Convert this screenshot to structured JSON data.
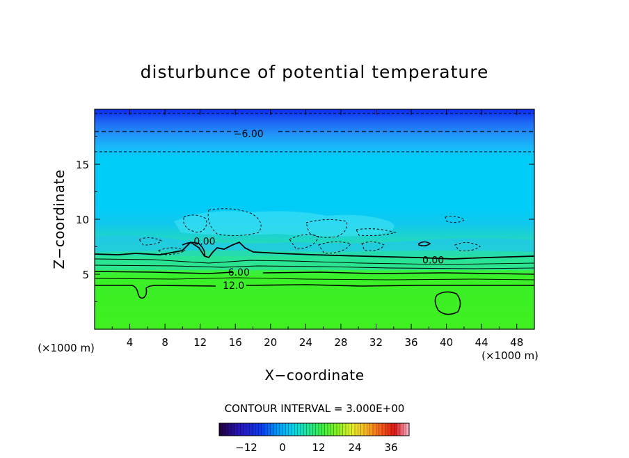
{
  "chart_data": {
    "type": "heatmap",
    "title": "disturbunce of potential temperature",
    "xlabel": "X−coordinate",
    "ylabel": "Z−coordinate",
    "x_unit": "(×1000 m)",
    "y_unit": "(×1000 m)",
    "xlim": [
      0,
      50
    ],
    "ylim": [
      0,
      20
    ],
    "x_ticks": [
      4,
      8,
      12,
      16,
      20,
      24,
      28,
      32,
      36,
      40,
      44,
      48
    ],
    "y_ticks": [
      5,
      10,
      15
    ],
    "contour_interval_text": "CONTOUR INTERVAL = 3.000E+00",
    "contour_labels": [
      {
        "text": "−6.00",
        "x": 17.5,
        "y": 17.8
      },
      {
        "text": "0.00",
        "x": 12.5,
        "y": 8.0
      },
      {
        "text": "0.00",
        "x": 38.5,
        "y": 6.3
      },
      {
        "text": "6.00",
        "x": 16.4,
        "y": 5.2
      },
      {
        "text": "12.0",
        "x": 15.8,
        "y": 4.0
      }
    ],
    "contour_levels": [
      {
        "value": -6,
        "style": "dashed",
        "z": 17.8
      },
      {
        "value": -3,
        "style": "dashed",
        "z": 16.0
      },
      {
        "value": 0,
        "style": "solid",
        "z": 6.6
      },
      {
        "value": 6,
        "style": "solid",
        "z": 5.3
      },
      {
        "value": 12,
        "style": "solid",
        "z": 4.1
      }
    ],
    "colorbar": {
      "min": -21,
      "max": 42,
      "tick_labels": [
        "−12",
        "0",
        "12",
        "24",
        "36"
      ],
      "tick_values": [
        -12,
        0,
        12,
        24,
        36
      ]
    }
  }
}
